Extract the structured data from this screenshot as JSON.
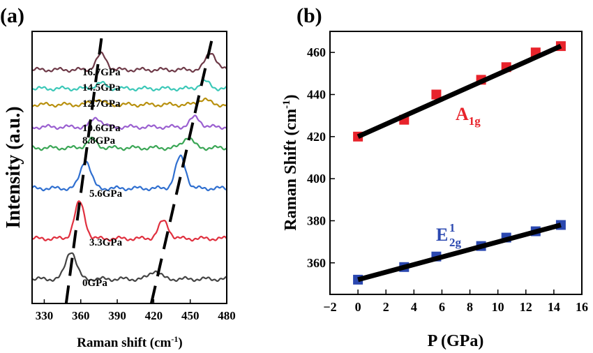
{
  "chart_data": [
    {
      "panel_label": "(a)",
      "type": "line",
      "xlabel": "Raman shift (cm",
      "xlabel_sup": "-1",
      "xlabel_end": ")",
      "ylabel": "Intensity (a.u.)",
      "xlim": [
        320,
        480
      ],
      "ylim": [
        0,
        390
      ],
      "xticks": [
        330,
        360,
        390,
        420,
        450,
        480
      ],
      "grid": false,
      "series": [
        {
          "name": "0GPa",
          "color": "#444444",
          "offset": 35,
          "peaks": [
            [
              352,
              40
            ],
            [
              421,
              12
            ]
          ]
        },
        {
          "name": "3.3GPa",
          "color": "#e0303f",
          "offset": 93,
          "peaks": [
            [
              359,
              52
            ],
            [
              428,
              25
            ]
          ]
        },
        {
          "name": "5.6GPa",
          "color": "#2f6fd0",
          "offset": 165,
          "peaks": [
            [
              364,
              40
            ],
            [
              442,
              45
            ]
          ]
        },
        {
          "name": "8.8GPa",
          "color": "#3aa655",
          "offset": 223,
          "peaks": [
            [
              369,
              12
            ],
            [
              448,
              15
            ]
          ]
        },
        {
          "name": "10.6GPa",
          "color": "#9a5fd0",
          "offset": 253,
          "peaks": [
            [
              373,
              13
            ],
            [
              454,
              14
            ]
          ]
        },
        {
          "name": "12.7GPa",
          "color": "#b8900e",
          "offset": 285,
          "peaks": [
            [
              373,
              8
            ],
            [
              461,
              8
            ]
          ]
        },
        {
          "name": "14.5GPa",
          "color": "#3cc8b8",
          "offset": 308,
          "peaks": [
            [
              376,
              8
            ],
            [
              462,
              10
            ]
          ]
        },
        {
          "name": "16.7GPa",
          "color": "#6e3a48",
          "offset": 335,
          "peaks": [
            [
              377,
              22
            ],
            [
              467,
              25
            ]
          ]
        }
      ],
      "guide_lines": [
        [
          [
            348,
            0
          ],
          [
            377,
            380
          ]
        ],
        [
          [
            418,
            0
          ],
          [
            468,
            380
          ]
        ]
      ]
    },
    {
      "panel_label": "(b)",
      "type": "scatter",
      "xlabel": "P (GPa)",
      "ylabel": "Raman Shift (cm",
      "ylabel_sup": "-1",
      "ylabel_end": ")",
      "xlim": [
        -2,
        16
      ],
      "ylim": [
        345,
        470
      ],
      "xticks": [
        -2,
        0,
        2,
        4,
        6,
        8,
        10,
        12,
        14,
        16
      ],
      "yticks": [
        360,
        380,
        400,
        420,
        440,
        460
      ],
      "grid": false,
      "series": [
        {
          "name": "A1g",
          "label_main": "A",
          "label_sub": "1g",
          "color": "#e8232b",
          "x": [
            0,
            3.3,
            5.6,
            8.8,
            10.6,
            12.7,
            14.5
          ],
          "y": [
            420,
            428,
            440,
            447,
            453,
            460,
            463
          ],
          "fit": [
            [
              0,
              420
            ],
            [
              14.5,
              463
            ]
          ]
        },
        {
          "name": "E2g1",
          "label_main": "E",
          "label_sub": "2g",
          "label_sup": "1",
          "color": "#2b48b0",
          "x": [
            0,
            3.3,
            5.6,
            8.8,
            10.6,
            12.7,
            14.5
          ],
          "y": [
            352,
            358,
            363,
            368,
            372,
            375,
            378
          ],
          "fit": [
            [
              0,
              352
            ],
            [
              14.5,
              378
            ]
          ]
        }
      ]
    }
  ]
}
